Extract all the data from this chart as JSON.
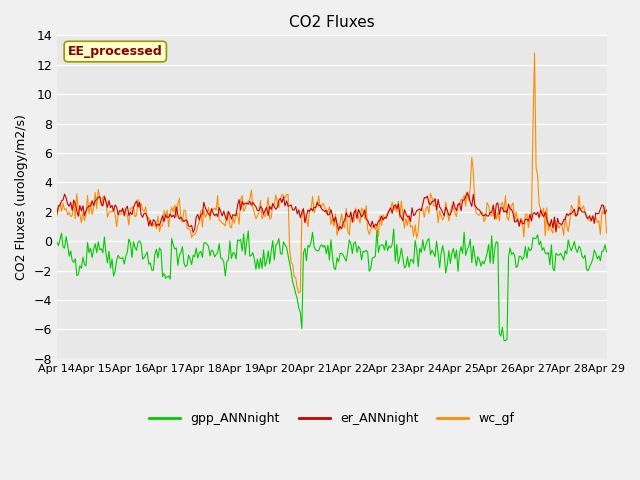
{
  "title": "CO2 Fluxes",
  "ylabel": "CO2 Fluxes (urology/m2/s)",
  "ylim": [
    -8,
    14
  ],
  "yticks": [
    -8,
    -6,
    -4,
    -2,
    0,
    2,
    4,
    6,
    8,
    10,
    12,
    14
  ],
  "xlim_start": 0,
  "xlim_end": 15,
  "x_tick_labels": [
    "Apr 14",
    "Apr 15",
    "Apr 16",
    "Apr 17",
    "Apr 18",
    "Apr 19",
    "Apr 20",
    "Apr 21",
    "Apr 22",
    "Apr 23",
    "Apr 24",
    "Apr 25",
    "Apr 26",
    "Apr 27",
    "Apr 28",
    "Apr 29"
  ],
  "annotation_text": "EE_processed",
  "annotation_color": "#8B0000",
  "annotation_bg": "#FFFFCC",
  "annotation_border": "#999900",
  "colors": {
    "gpp_ANNnight": "#00CC00",
    "er_ANNnight": "#CC0000",
    "wc_gf": "#FF8C00"
  },
  "background_color": "#E8E8E8",
  "fig_background": "#F0F0F0",
  "grid_color": "#FFFFFF",
  "linewidth": 0.8,
  "seed": 42,
  "n_points": 360
}
